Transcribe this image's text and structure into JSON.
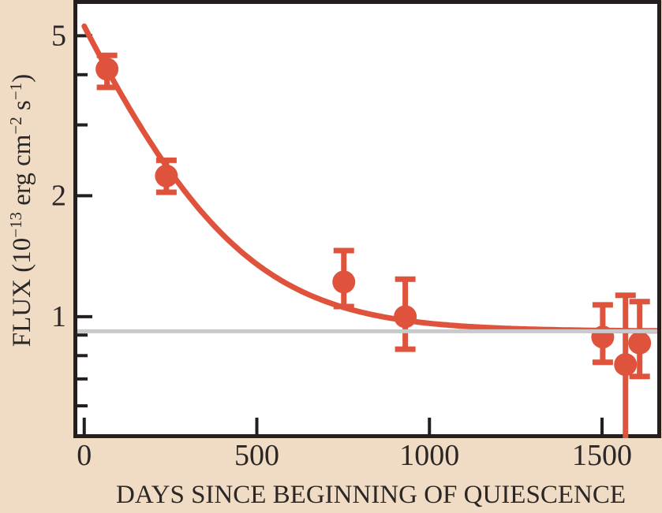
{
  "figure": {
    "background_color": "#f0dcc5",
    "plot_background_color": "#ffffff",
    "frame_color": "#231f20",
    "accent_red": "#df533c",
    "baseline_gray": "#c9cacc",
    "text_color": "#2b2727"
  },
  "chart_data": {
    "type": "scatter",
    "title": "",
    "xlabel": "DAYS SINCE BEGINNING OF QUIESCENCE",
    "ylabel": {
      "p1": "FLUX (10",
      "s1": "−13",
      "p2": " erg cm",
      "s2": "−2",
      "p3": " s",
      "s3": "−1",
      "p4": ")"
    },
    "x_axis": {
      "label": "DAYS SINCE BEGINNING OF QUIESCENCE",
      "lim": [
        -20,
        1660
      ],
      "ticks": [
        0,
        500,
        1000,
        1500
      ],
      "tick_labels": [
        "0",
        "500",
        "1000",
        "1500"
      ]
    },
    "y_axis": {
      "label": "FLUX (10^-13 erg cm^-2 s^-1)",
      "scale": "log",
      "lim": [
        0.51,
        6.0
      ],
      "major_ticks": [
        5,
        2,
        1
      ],
      "major_tick_labels": [
        "5",
        "2",
        "1"
      ],
      "minor_ticks": [
        4,
        3,
        0.9,
        0.8,
        0.7,
        0.6
      ]
    },
    "series": [
      {
        "name": "observed-flux-points",
        "type": "scatter-errorbar",
        "points": [
          {
            "day": 66,
            "flux": 4.13,
            "err_lo": 3.72,
            "err_hi": 4.47
          },
          {
            "day": 238,
            "flux": 2.24,
            "err_lo": 2.04,
            "err_hi": 2.45
          },
          {
            "day": 752,
            "flux": 1.22,
            "err_lo": 1.06,
            "err_hi": 1.46
          },
          {
            "day": 930,
            "flux": 1.0,
            "err_lo": 0.83,
            "err_hi": 1.24
          },
          {
            "day": 1502,
            "flux": 0.89,
            "err_lo": 0.77,
            "err_hi": 1.07
          },
          {
            "day": 1568,
            "flux": 0.76,
            "err_lo": null,
            "err_hi": 1.13
          },
          {
            "day": 1609,
            "flux": 0.86,
            "err_lo": 0.71,
            "err_hi": 1.09
          }
        ]
      },
      {
        "name": "exponential-decay-model-curve",
        "type": "line",
        "model": "flux(t) = A*exp(-t/tau) + C",
        "A": 4.36,
        "tau": 216,
        "C": 0.92,
        "t_range": [
          0,
          1660
        ]
      }
    ],
    "baseline": {
      "name": "quiescent-flux-level",
      "flux": 0.92
    },
    "grid": false,
    "legend": false
  }
}
